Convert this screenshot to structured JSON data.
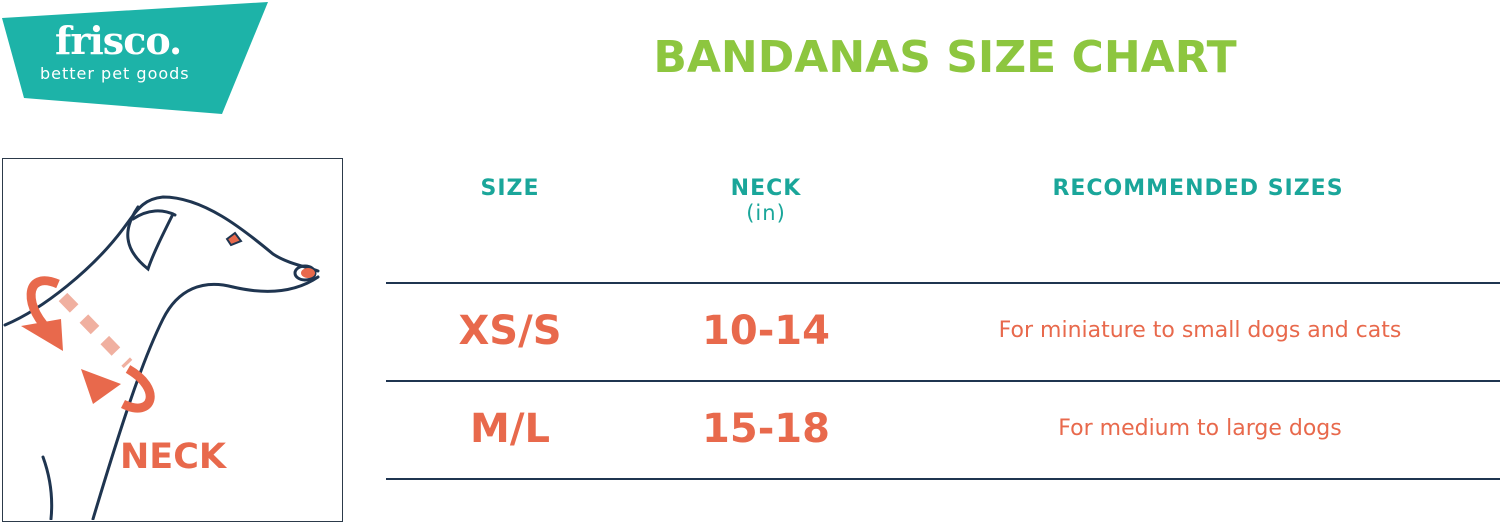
{
  "logo": {
    "brand": "frisco.",
    "tagline": "better pet goods",
    "color": "#1db3a8"
  },
  "title": "BANDANAS SIZE CHART",
  "illustration": {
    "label": "NECK"
  },
  "table": {
    "headers": [
      {
        "label": "SIZE"
      },
      {
        "label": "NECK",
        "sub": "(in)"
      },
      {
        "label": "RECOMMENDED SIZES"
      }
    ],
    "rows": [
      {
        "size": "XS/S",
        "neck": "10-14",
        "recommended": "For miniature to small dogs and cats"
      },
      {
        "size": "M/L",
        "neck": "15-18",
        "recommended": "For medium to large dogs"
      }
    ]
  },
  "colors": {
    "title": "#8dc63f",
    "header": "#1aa69a",
    "values": "#e8694c",
    "lines": "#1f3550"
  }
}
